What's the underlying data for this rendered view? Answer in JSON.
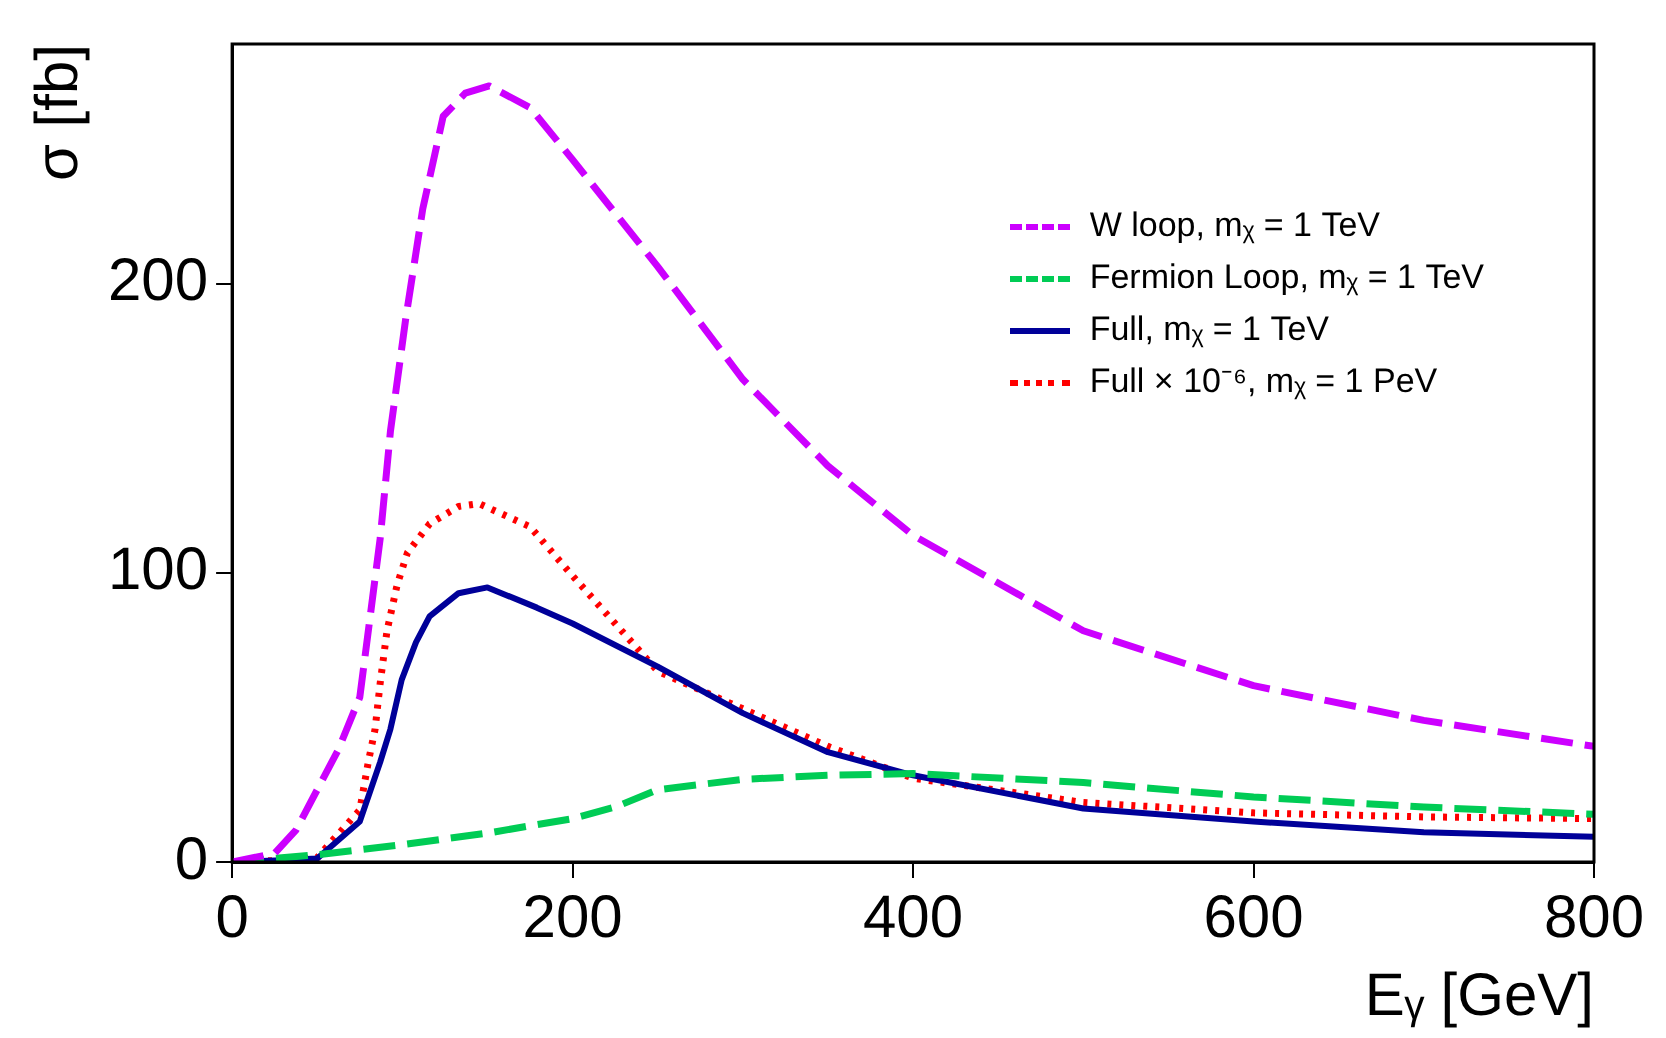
{
  "chart_data": {
    "type": "line",
    "xlabel": "Eᵧ [GeV]",
    "ylabel": "σ [fb]",
    "xlim": [
      0,
      800
    ],
    "xticks": [
      0,
      200,
      400,
      600,
      800
    ],
    "ylim": [
      0,
      283
    ],
    "yticks": [
      0,
      100,
      200
    ],
    "grid": false,
    "legend": "top right",
    "marker": "none",
    "series": [
      {
        "name": "W loop, mᵪ = 1 TeV",
        "color": "#cc00ff",
        "line_style": "dashed",
        "x": [
          0,
          25,
          37.5,
          62.5,
          75,
          87,
          93,
          102,
          112,
          124,
          137,
          151,
          175,
          200,
          250,
          300,
          350,
          400,
          500,
          600,
          700,
          800
        ],
        "values": [
          0,
          3,
          11,
          39,
          57,
          112,
          149,
          188,
          226,
          258,
          266,
          268.5,
          261,
          243,
          206,
          167,
          137,
          113,
          80,
          61,
          49,
          40
        ]
      },
      {
        "name": "Fermion Loop, mᵪ = 1 TeV",
        "color": "#00cc55",
        "line_style": "dashed",
        "x": [
          0,
          50,
          100,
          150,
          200,
          225,
          250,
          300,
          350,
          400,
          500,
          600,
          700,
          800
        ],
        "values": [
          0,
          2.5,
          6,
          10,
          15,
          19,
          25,
          28.6,
          30,
          30.6,
          27.5,
          22.5,
          19,
          16.5
        ]
      },
      {
        "name": "Full, mᵪ = 1 TeV",
        "color": "#000099",
        "line_style": "solid",
        "x": [
          0,
          25,
          50,
          75,
          87,
          93,
          99.6,
          108,
          116,
          133,
          150,
          179,
          200,
          250,
          300,
          350,
          400,
          500,
          600,
          700,
          800
        ],
        "values": [
          0,
          0.5,
          1.2,
          14,
          34.6,
          46,
          63,
          76,
          85,
          93,
          95,
          88,
          82.5,
          67.6,
          51.5,
          38,
          30,
          18.5,
          14,
          10.3,
          8.7
        ]
      },
      {
        "name": "Full × 10⁻⁶, mᵪ = 1 PeV",
        "color": "#ff0000",
        "line_style": "dotted",
        "x": [
          0,
          25,
          50,
          75,
          80,
          84,
          87,
          91,
          97,
          103,
          116,
          133,
          145,
          175,
          200,
          250,
          300,
          350,
          400,
          500,
          600,
          700,
          800
        ],
        "values": [
          0,
          0.5,
          1.5,
          18,
          34.6,
          46,
          62,
          80,
          96,
          107,
          117,
          123,
          124,
          116,
          99,
          66,
          53,
          40,
          29,
          20.6,
          17,
          15.6,
          15
        ]
      }
    ]
  }
}
